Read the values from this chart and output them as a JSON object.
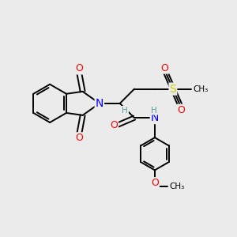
{
  "bg_color": "#ebebeb",
  "bond_color": "#000000",
  "bond_width": 1.4,
  "atom_colors": {
    "O": "#ff0000",
    "N": "#0000ff",
    "S": "#cccc00",
    "H": "#5f9ea0",
    "C": "#000000"
  },
  "font_size_atom": 9,
  "font_size_small": 7.5
}
